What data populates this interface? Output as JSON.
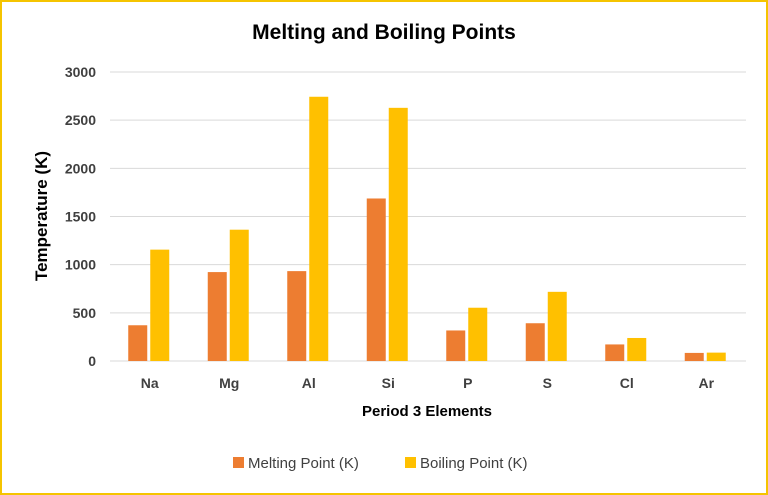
{
  "chart_data": {
    "type": "bar",
    "title": "Melting and Boiling Points",
    "xlabel": "Period 3 Elements",
    "ylabel": "Temperature (K)",
    "categories": [
      "Na",
      "Mg",
      "Al",
      "Si",
      "P",
      "S",
      "Cl",
      "Ar"
    ],
    "series": [
      {
        "name": "Melting Point (K)",
        "color": "#ED7D31",
        "values": [
          371,
          923,
          933,
          1687,
          317,
          392,
          172,
          84
        ]
      },
      {
        "name": "Boiling Point (K)",
        "color": "#FFC000",
        "values": [
          1156,
          1363,
          2743,
          2628,
          553,
          718,
          239,
          87
        ]
      }
    ],
    "ylim": [
      0,
      3000
    ],
    "yticks": [
      0,
      500,
      1000,
      1500,
      2000,
      2500,
      3000
    ],
    "grid": true,
    "legend_position": "bottom",
    "border_color": "#F5C400"
  }
}
